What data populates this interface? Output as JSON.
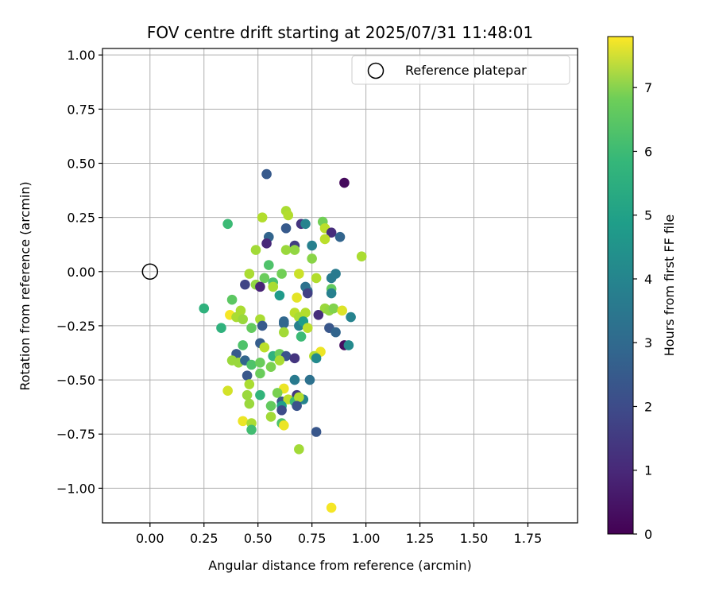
{
  "chart_data": {
    "type": "scatter",
    "title": "FOV centre drift starting at 2025/07/31 11:48:01",
    "xlabel": "Angular distance from reference (arcmin)",
    "ylabel": "Rotation from reference (arcmin)",
    "xlim": [
      -0.22,
      1.98
    ],
    "ylim": [
      -1.16,
      1.03
    ],
    "xticks": [
      0.0,
      0.25,
      0.5,
      0.75,
      1.0,
      1.25,
      1.5,
      1.75
    ],
    "xtick_labels": [
      "0.00",
      "0.25",
      "0.50",
      "0.75",
      "1.00",
      "1.25",
      "1.50",
      "1.75"
    ],
    "yticks": [
      1.0,
      0.75,
      0.5,
      0.25,
      0.0,
      -0.25,
      -0.5,
      -0.75,
      -1.0
    ],
    "ytick_labels": [
      "1.00",
      "0.75",
      "0.50",
      "0.25",
      "0.00",
      "−0.25",
      "−0.50",
      "−0.75",
      "−1.00"
    ],
    "grid": true,
    "legend": {
      "placement": "top-right",
      "entries": [
        "Reference platepar"
      ]
    },
    "reference_point": {
      "x": 0.0,
      "y": 0.0
    },
    "colorbar": {
      "label": "Hours from first FF file",
      "colormap": "viridis",
      "range": [
        0,
        7.8
      ],
      "ticks": [
        0,
        1,
        2,
        3,
        4,
        5,
        6,
        7
      ],
      "tick_labels": [
        "0",
        "1",
        "2",
        "3",
        "4",
        "5",
        "6",
        "7"
      ]
    },
    "points": [
      {
        "x": 0.54,
        "y": 0.45,
        "c": 2.2
      },
      {
        "x": 0.9,
        "y": 0.41,
        "c": 0.2
      },
      {
        "x": 0.63,
        "y": 0.28,
        "c": 6.8
      },
      {
        "x": 0.64,
        "y": 0.26,
        "c": 6.9
      },
      {
        "x": 0.52,
        "y": 0.25,
        "c": 6.9
      },
      {
        "x": 0.7,
        "y": 0.22,
        "c": 1.2
      },
      {
        "x": 0.72,
        "y": 0.22,
        "c": 3.5
      },
      {
        "x": 0.36,
        "y": 0.22,
        "c": 5.3
      },
      {
        "x": 0.8,
        "y": 0.23,
        "c": 6.1
      },
      {
        "x": 0.81,
        "y": 0.2,
        "c": 7.0
      },
      {
        "x": 0.63,
        "y": 0.2,
        "c": 2.2
      },
      {
        "x": 0.84,
        "y": 0.18,
        "c": 1.0
      },
      {
        "x": 0.55,
        "y": 0.16,
        "c": 2.5
      },
      {
        "x": 0.81,
        "y": 0.15,
        "c": 7.0
      },
      {
        "x": 0.88,
        "y": 0.16,
        "c": 2.5
      },
      {
        "x": 0.54,
        "y": 0.13,
        "c": 0.9
      },
      {
        "x": 0.67,
        "y": 0.12,
        "c": 1.4
      },
      {
        "x": 0.75,
        "y": 0.12,
        "c": 3.4
      },
      {
        "x": 0.49,
        "y": 0.1,
        "c": 6.7
      },
      {
        "x": 0.63,
        "y": 0.1,
        "c": 6.6
      },
      {
        "x": 0.67,
        "y": 0.1,
        "c": 6.5
      },
      {
        "x": 0.75,
        "y": 0.06,
        "c": 6.4
      },
      {
        "x": 0.98,
        "y": 0.07,
        "c": 6.8
      },
      {
        "x": 0.55,
        "y": 0.03,
        "c": 5.6
      },
      {
        "x": 0.46,
        "y": -0.01,
        "c": 6.8
      },
      {
        "x": 0.61,
        "y": -0.01,
        "c": 6.1
      },
      {
        "x": 0.69,
        "y": -0.01,
        "c": 7.2
      },
      {
        "x": 0.86,
        "y": -0.01,
        "c": 3.2
      },
      {
        "x": 0.53,
        "y": -0.03,
        "c": 6.0
      },
      {
        "x": 0.77,
        "y": -0.03,
        "c": 6.9
      },
      {
        "x": 0.84,
        "y": -0.03,
        "c": 3.2
      },
      {
        "x": 0.57,
        "y": -0.05,
        "c": 5.5
      },
      {
        "x": 0.44,
        "y": -0.06,
        "c": 1.6
      },
      {
        "x": 0.49,
        "y": -0.06,
        "c": 6.5
      },
      {
        "x": 0.51,
        "y": -0.07,
        "c": 0.8
      },
      {
        "x": 0.57,
        "y": -0.07,
        "c": 6.8
      },
      {
        "x": 0.72,
        "y": -0.07,
        "c": 2.9
      },
      {
        "x": 0.73,
        "y": -0.09,
        "c": 3.0
      },
      {
        "x": 0.84,
        "y": -0.08,
        "c": 5.9
      },
      {
        "x": 0.73,
        "y": -0.1,
        "c": 1.5
      },
      {
        "x": 0.84,
        "y": -0.1,
        "c": 3.4
      },
      {
        "x": 0.6,
        "y": -0.11,
        "c": 4.2
      },
      {
        "x": 0.68,
        "y": -0.12,
        "c": 7.5
      },
      {
        "x": 0.38,
        "y": -0.13,
        "c": 5.8
      },
      {
        "x": 0.25,
        "y": -0.17,
        "c": 5.0
      },
      {
        "x": 0.42,
        "y": -0.18,
        "c": 6.8
      },
      {
        "x": 0.81,
        "y": -0.17,
        "c": 6.6
      },
      {
        "x": 0.83,
        "y": -0.18,
        "c": 6.5
      },
      {
        "x": 0.85,
        "y": -0.17,
        "c": 6.3
      },
      {
        "x": 0.89,
        "y": -0.18,
        "c": 7.4
      },
      {
        "x": 0.37,
        "y": -0.2,
        "c": 7.7
      },
      {
        "x": 0.4,
        "y": -0.21,
        "c": 6.8
      },
      {
        "x": 0.43,
        "y": -0.22,
        "c": 6.6
      },
      {
        "x": 0.51,
        "y": -0.22,
        "c": 6.8
      },
      {
        "x": 0.62,
        "y": -0.23,
        "c": 2.6
      },
      {
        "x": 0.67,
        "y": -0.19,
        "c": 7.0
      },
      {
        "x": 0.69,
        "y": -0.21,
        "c": 6.8
      },
      {
        "x": 0.72,
        "y": -0.19,
        "c": 6.9
      },
      {
        "x": 0.78,
        "y": -0.2,
        "c": 1.0
      },
      {
        "x": 0.93,
        "y": -0.21,
        "c": 3.5
      },
      {
        "x": 0.62,
        "y": -0.24,
        "c": 2.6
      },
      {
        "x": 0.69,
        "y": -0.25,
        "c": 3.4
      },
      {
        "x": 0.71,
        "y": -0.23,
        "c": 4.3
      },
      {
        "x": 0.52,
        "y": -0.25,
        "c": 2.2
      },
      {
        "x": 0.33,
        "y": -0.26,
        "c": 5.0
      },
      {
        "x": 0.47,
        "y": -0.26,
        "c": 5.9
      },
      {
        "x": 0.73,
        "y": -0.26,
        "c": 7.0
      },
      {
        "x": 0.83,
        "y": -0.26,
        "c": 2.1
      },
      {
        "x": 0.86,
        "y": -0.28,
        "c": 2.5
      },
      {
        "x": 0.62,
        "y": -0.28,
        "c": 6.7
      },
      {
        "x": 0.7,
        "y": -0.3,
        "c": 5.3
      },
      {
        "x": 0.51,
        "y": -0.33,
        "c": 2.3
      },
      {
        "x": 0.43,
        "y": -0.34,
        "c": 5.6
      },
      {
        "x": 0.53,
        "y": -0.35,
        "c": 7.0
      },
      {
        "x": 0.9,
        "y": -0.34,
        "c": 0.3
      },
      {
        "x": 0.92,
        "y": -0.34,
        "c": 3.7
      },
      {
        "x": 0.79,
        "y": -0.37,
        "c": 7.6
      },
      {
        "x": 0.4,
        "y": -0.38,
        "c": 2.2
      },
      {
        "x": 0.57,
        "y": -0.39,
        "c": 5.0
      },
      {
        "x": 0.6,
        "y": -0.38,
        "c": 6.0
      },
      {
        "x": 0.63,
        "y": -0.39,
        "c": 2.0
      },
      {
        "x": 0.67,
        "y": -0.4,
        "c": 1.2
      },
      {
        "x": 0.76,
        "y": -0.39,
        "c": 6.9
      },
      {
        "x": 0.77,
        "y": -0.4,
        "c": 3.7
      },
      {
        "x": 0.38,
        "y": -0.41,
        "c": 6.6
      },
      {
        "x": 0.41,
        "y": -0.42,
        "c": 6.6
      },
      {
        "x": 0.44,
        "y": -0.41,
        "c": 2.5
      },
      {
        "x": 0.47,
        "y": -0.43,
        "c": 5.6
      },
      {
        "x": 0.51,
        "y": -0.42,
        "c": 6.0
      },
      {
        "x": 0.56,
        "y": -0.44,
        "c": 6.2
      },
      {
        "x": 0.6,
        "y": -0.41,
        "c": 6.8
      },
      {
        "x": 0.45,
        "y": -0.48,
        "c": 2.1
      },
      {
        "x": 0.51,
        "y": -0.47,
        "c": 6.0
      },
      {
        "x": 0.67,
        "y": -0.5,
        "c": 3.2
      },
      {
        "x": 0.74,
        "y": -0.5,
        "c": 2.9
      },
      {
        "x": 0.46,
        "y": -0.52,
        "c": 6.8
      },
      {
        "x": 0.62,
        "y": -0.54,
        "c": 7.6
      },
      {
        "x": 0.36,
        "y": -0.55,
        "c": 7.3
      },
      {
        "x": 0.45,
        "y": -0.57,
        "c": 6.6
      },
      {
        "x": 0.51,
        "y": -0.57,
        "c": 5.1
      },
      {
        "x": 0.59,
        "y": -0.56,
        "c": 6.2
      },
      {
        "x": 0.68,
        "y": -0.57,
        "c": 1.3
      },
      {
        "x": 0.71,
        "y": -0.59,
        "c": 3.5
      },
      {
        "x": 0.46,
        "y": -0.61,
        "c": 6.6
      },
      {
        "x": 0.61,
        "y": -0.6,
        "c": 2.1
      },
      {
        "x": 0.64,
        "y": -0.59,
        "c": 7.0
      },
      {
        "x": 0.67,
        "y": -0.6,
        "c": 5.3
      },
      {
        "x": 0.69,
        "y": -0.58,
        "c": 6.9
      },
      {
        "x": 0.56,
        "y": -0.62,
        "c": 5.9
      },
      {
        "x": 0.61,
        "y": -0.62,
        "c": 4.4
      },
      {
        "x": 0.61,
        "y": -0.64,
        "c": 1.8
      },
      {
        "x": 0.68,
        "y": -0.62,
        "c": 2.0
      },
      {
        "x": 0.56,
        "y": -0.67,
        "c": 6.7
      },
      {
        "x": 0.43,
        "y": -0.69,
        "c": 7.6
      },
      {
        "x": 0.47,
        "y": -0.7,
        "c": 6.8
      },
      {
        "x": 0.61,
        "y": -0.7,
        "c": 5.6
      },
      {
        "x": 0.62,
        "y": -0.71,
        "c": 7.6
      },
      {
        "x": 0.47,
        "y": -0.73,
        "c": 5.4
      },
      {
        "x": 0.77,
        "y": -0.74,
        "c": 2.1
      },
      {
        "x": 0.69,
        "y": -0.82,
        "c": 6.7
      },
      {
        "x": 0.84,
        "y": -1.09,
        "c": 7.7
      }
    ]
  }
}
